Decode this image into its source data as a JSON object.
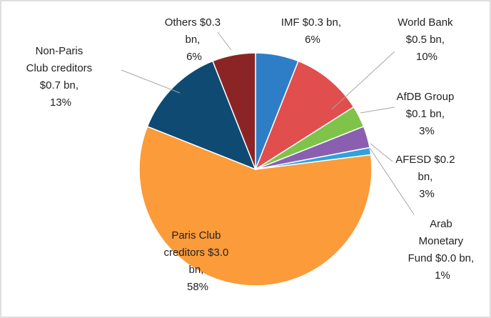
{
  "chart_data": {
    "type": "pie",
    "values": [
      6,
      10,
      3,
      3,
      1,
      58,
      13,
      6
    ],
    "value_labels": [
      "IMF $0.3 bn, 6%",
      "World Bank $0.5 bn, 10%",
      "AfDB Group $0.1 bn, 3%",
      "AFESD $0.2 bn, 3%",
      "Arab Monetary Fund $0.0 bn, 1%",
      "Paris Club creditors $3.0 bn, 58%",
      "Non-Paris Club creditors $0.7 bn, 13%",
      "Others $0.3 bn, 6%"
    ],
    "colors": [
      "#2e7ec7",
      "#e04e4e",
      "#7fc34a",
      "#8a5fb0",
      "#2ea3d8",
      "#fb9b3a",
      "#0e4a72",
      "#8b2525"
    ]
  }
}
